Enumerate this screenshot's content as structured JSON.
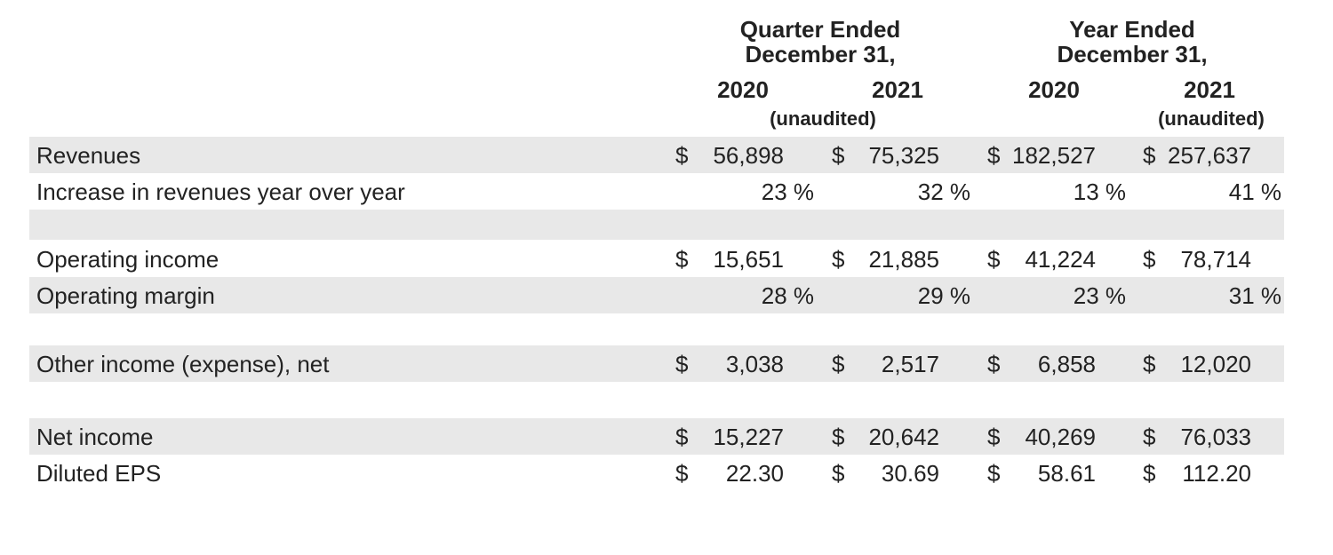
{
  "headers": {
    "quarter_ended": "Quarter Ended",
    "year_ended": "Year Ended",
    "december_31_q": "December 31,",
    "december_31_y": "December 31,",
    "years": [
      "2020",
      "2021",
      "2020",
      "2021"
    ],
    "unaudited_q": "(unaudited)",
    "unaudited_y": "(unaudited)"
  },
  "rows": [
    {
      "label": "Revenues",
      "cells": [
        {
          "dollar": "$",
          "value": "56,898"
        },
        {
          "dollar": "$",
          "value": "75,325"
        },
        {
          "dollar": "$",
          "value": "182,527"
        },
        {
          "dollar": "$",
          "value": "257,637"
        }
      ]
    },
    {
      "label": "Increase in revenues year over year",
      "cells": [
        {
          "value": "23 %"
        },
        {
          "value": "32 %"
        },
        {
          "value": "13 %"
        },
        {
          "value": "41 %"
        }
      ]
    },
    {
      "label": "Operating income",
      "cells": [
        {
          "dollar": "$",
          "value": "15,651"
        },
        {
          "dollar": "$",
          "value": "21,885"
        },
        {
          "dollar": "$",
          "value": "41,224"
        },
        {
          "dollar": "$",
          "value": "78,714"
        }
      ]
    },
    {
      "label": "Operating margin",
      "cells": [
        {
          "value": "28 %"
        },
        {
          "value": "29 %"
        },
        {
          "value": "23 %"
        },
        {
          "value": "31 %"
        }
      ]
    },
    {
      "label": "Other income (expense), net",
      "cells": [
        {
          "dollar": "$",
          "value": "3,038"
        },
        {
          "dollar": "$",
          "value": "2,517"
        },
        {
          "dollar": "$",
          "value": "6,858"
        },
        {
          "dollar": "$",
          "value": "12,020"
        }
      ]
    },
    {
      "label": "Net income",
      "cells": [
        {
          "dollar": "$",
          "value": "15,227"
        },
        {
          "dollar": "$",
          "value": "20,642"
        },
        {
          "dollar": "$",
          "value": "40,269"
        },
        {
          "dollar": "$",
          "value": "76,033"
        }
      ]
    },
    {
      "label": "Diluted EPS",
      "cells": [
        {
          "dollar": "$",
          "value": "22.30"
        },
        {
          "dollar": "$",
          "value": "30.69"
        },
        {
          "dollar": "$",
          "value": "58.61"
        },
        {
          "dollar": "$",
          "value": "112.20"
        }
      ]
    }
  ],
  "colors": {
    "band": "#e8e8e8",
    "text": "#222222"
  }
}
